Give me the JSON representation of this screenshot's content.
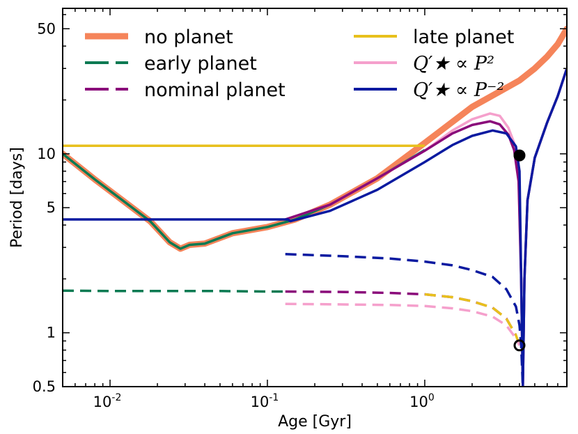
{
  "chart_data": {
    "type": "line",
    "title": "",
    "xlabel": "Age [Gyr]",
    "ylabel": "Period [days]",
    "xscale": "log",
    "yscale": "log",
    "xlim": [
      0.005,
      8.0
    ],
    "ylim": [
      0.5,
      65
    ],
    "xticks": [
      {
        "value": 0.01,
        "base": "10",
        "exp": "-2"
      },
      {
        "value": 0.1,
        "base": "10",
        "exp": "-1"
      },
      {
        "value": 1,
        "base": "10",
        "exp": "0"
      }
    ],
    "yticks": [
      {
        "value": 0.5,
        "label": "0.5"
      },
      {
        "value": 1,
        "label": "1"
      },
      {
        "value": 5,
        "label": "5"
      },
      {
        "value": 10,
        "label": "10"
      },
      {
        "value": 50,
        "label": "50"
      }
    ],
    "legend_position": "top",
    "series": [
      {
        "name": "no planet",
        "color": "#f5845a",
        "style": "solid",
        "width": "thick",
        "x": [
          0.005,
          0.008,
          0.012,
          0.018,
          0.024,
          0.028,
          0.032,
          0.04,
          0.06,
          0.1,
          0.15,
          0.25,
          0.5,
          1.0,
          2.0,
          3.0,
          4.0,
          5.0,
          6.0,
          7.0,
          8.0
        ],
        "y": [
          10,
          7.2,
          5.5,
          4.2,
          3.2,
          2.95,
          3.1,
          3.15,
          3.6,
          3.9,
          4.3,
          5.2,
          7.3,
          11.5,
          18.3,
          22.3,
          25.7,
          30,
          35,
          41,
          50
        ]
      },
      {
        "name": "early planet",
        "color": "#0a7a52",
        "style": "solid",
        "x": [
          0.005,
          0.008,
          0.012,
          0.018,
          0.024,
          0.028,
          0.032,
          0.04,
          0.06,
          0.1,
          0.15,
          0.25,
          0.5,
          1.0
        ],
        "y": [
          10,
          7.2,
          5.5,
          4.2,
          3.2,
          2.95,
          3.1,
          3.15,
          3.6,
          3.9,
          4.3,
          5.2,
          7.3,
          10.5
        ]
      },
      {
        "name": "early planet orbit",
        "color": "#0a7a52",
        "style": "dashed",
        "x": [
          0.005,
          0.01,
          0.05,
          0.1,
          0.13
        ],
        "y": [
          1.72,
          1.71,
          1.71,
          1.7,
          1.7
        ]
      },
      {
        "name": "nominal planet orbit",
        "color": "#8a0a7a",
        "style": "dashed",
        "x": [
          0.13,
          0.3,
          0.6,
          1.0,
          1.5,
          2.0,
          2.7,
          3.3,
          3.8
        ],
        "y": [
          1.7,
          1.69,
          1.67,
          1.64,
          1.58,
          1.5,
          1.38,
          1.2,
          0.97
        ]
      },
      {
        "name": "late planet",
        "color": "#e8c01c",
        "style": "solid",
        "x": [
          0.005,
          0.1,
          0.5,
          1.0
        ],
        "y": [
          11.1,
          11.1,
          11.1,
          11.1
        ]
      },
      {
        "name": "late planet orbit",
        "color": "#e8c01c",
        "style": "dashed",
        "x": [
          1.0,
          1.5,
          2.0,
          2.7,
          3.3,
          3.8,
          4.0
        ],
        "y": [
          1.64,
          1.58,
          1.5,
          1.38,
          1.2,
          0.97,
          0.85
        ]
      },
      {
        "name": "Q'★ ∝ P^2",
        "color": "#f5a0cc",
        "style": "solid",
        "x": [
          0.13,
          0.25,
          0.5,
          1.0,
          1.5,
          2.0,
          2.6,
          3.0,
          3.4,
          3.7,
          3.95,
          4.1,
          4.2,
          4.3,
          4.5,
          5.0,
          6.0,
          7.0,
          8.0
        ],
        "y": [
          4.3,
          5.2,
          7.3,
          10.4,
          13.5,
          15.6,
          16.8,
          16.3,
          14.0,
          11.5,
          7.5,
          2.0,
          0.5,
          2.0,
          5.5,
          9.5,
          15,
          21,
          30
        ]
      },
      {
        "name": "Q'★ ∝ P^2 orbit",
        "color": "#f5a0cc",
        "style": "dashed",
        "x": [
          0.13,
          0.3,
          0.6,
          1.0,
          1.5,
          2.0,
          2.7,
          3.3,
          3.8,
          4.0
        ],
        "y": [
          1.45,
          1.44,
          1.43,
          1.41,
          1.37,
          1.32,
          1.23,
          1.1,
          0.93,
          0.85
        ]
      },
      {
        "name": "nominal planet",
        "color": "#8a0a7a",
        "style": "solid",
        "x": [
          0.13,
          0.25,
          0.5,
          1.0,
          1.5,
          2.0,
          2.6,
          3.0,
          3.4,
          3.7,
          3.95,
          4.1,
          4.2,
          4.3,
          4.5,
          5.0,
          6.0,
          7.0,
          8.0
        ],
        "y": [
          4.3,
          5.2,
          7.3,
          10.4,
          13.0,
          14.5,
          15.2,
          14.6,
          12.8,
          10.5,
          7.0,
          2.0,
          0.5,
          2.0,
          5.5,
          9.5,
          15,
          21,
          30
        ]
      },
      {
        "name": "Q'★ ∝ P^-2",
        "color": "#0a1aa0",
        "style": "solid",
        "x": [
          0.005,
          0.1,
          0.135,
          0.14,
          0.25,
          0.5,
          1.0,
          1.5,
          2.0,
          2.7,
          3.3,
          3.8,
          4.0,
          4.1,
          4.2,
          4.3,
          4.5,
          5.0,
          6.0,
          7.0,
          8.0
        ],
        "y": [
          4.3,
          4.3,
          4.3,
          4.2,
          4.8,
          6.3,
          9.0,
          11.2,
          12.6,
          13.5,
          13.0,
          11.0,
          8.0,
          2.0,
          0.5,
          2.0,
          5.5,
          9.5,
          15,
          21,
          30
        ]
      },
      {
        "name": "Q'★ ∝ P^-2 orbit",
        "color": "#0a1aa0",
        "style": "dashed",
        "x": [
          0.13,
          0.3,
          0.6,
          1.0,
          1.5,
          2.0,
          2.7,
          3.3,
          3.8,
          4.0,
          4.1,
          4.2
        ],
        "y": [
          2.75,
          2.68,
          2.6,
          2.5,
          2.38,
          2.24,
          2.05,
          1.75,
          1.4,
          1.1,
          0.85,
          0.5
        ]
      }
    ],
    "markers": [
      {
        "x": 4.0,
        "y": 9.8,
        "style": "filled",
        "color": "#000000"
      },
      {
        "x": 4.0,
        "y": 0.85,
        "style": "open",
        "color": "#000000"
      }
    ],
    "legend": [
      {
        "label": "no planet",
        "color": "#f5845a",
        "style": "solid",
        "thick": true
      },
      {
        "label": "early planet",
        "color": "#0a7a52",
        "style": "dashed"
      },
      {
        "label": "nominal planet",
        "color": "#8a0a7a",
        "style": "dashed"
      },
      {
        "label": "late planet",
        "color": "#e8c01c",
        "style": "solid"
      },
      {
        "label": "Q′★ ∝ P²",
        "color": "#f5a0cc",
        "style": "solid",
        "math": true
      },
      {
        "label": "Q′★ ∝ P⁻²",
        "color": "#0a1aa0",
        "style": "solid",
        "math": true
      }
    ]
  }
}
